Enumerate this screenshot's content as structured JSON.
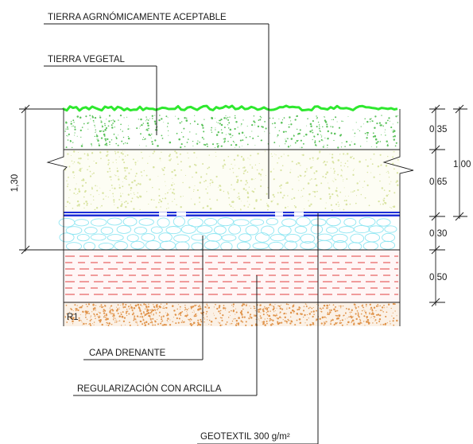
{
  "labels": {
    "tierra_agronomica": "TIERRA AGRNÓMICAMENTE ACEPTABLE",
    "tierra_vegetal": "TIERRA VEGETAL",
    "capa_drenante": "CAPA DRENANTE",
    "regularizacion": "REGULARIZACIÓN CON ARCILLA",
    "geotextil": "GEOTEXTIL 300 g/m²",
    "r1": "R1"
  },
  "dimensions": {
    "total_left": "1,30",
    "d035": "0,35",
    "d065": "0,65",
    "d100": "1,00",
    "d030": "0,30",
    "d050": "0,50"
  },
  "colors": {
    "grass": "#2ee82e",
    "topsoil_dots": "#5cc25c",
    "soil_dots": "#d8e3a0",
    "drain_band": "#1e2fd6",
    "gravel": "#8fe6f2",
    "clay_dash": "#e04040",
    "base_soil": "#e0934a"
  }
}
